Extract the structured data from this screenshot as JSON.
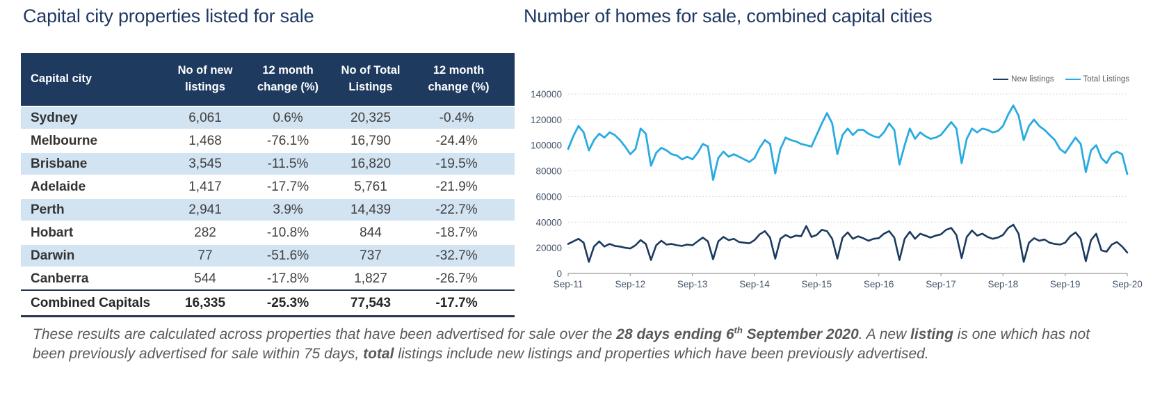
{
  "left_panel": {
    "title": "Capital city properties listed for sale",
    "table": {
      "columns": [
        "Capital city",
        "No of new listings",
        "12 month change (%)",
        "No of Total Listings",
        "12 month change (%)"
      ],
      "rows": [
        [
          "Sydney",
          "6,061",
          "0.6%",
          "20,325",
          "-0.4%"
        ],
        [
          "Melbourne",
          "1,468",
          "-76.1%",
          "16,790",
          "-24.4%"
        ],
        [
          "Brisbane",
          "3,545",
          "-11.5%",
          "16,820",
          "-19.5%"
        ],
        [
          "Adelaide",
          "1,417",
          "-17.7%",
          "5,761",
          "-21.9%"
        ],
        [
          "Perth",
          "2,941",
          "3.9%",
          "14,439",
          "-22.7%"
        ],
        [
          "Hobart",
          "282",
          "-10.8%",
          "844",
          "-18.7%"
        ],
        [
          "Darwin",
          "77",
          "-51.6%",
          "737",
          "-32.7%"
        ],
        [
          "Canberra",
          "544",
          "-17.8%",
          "1,827",
          "-26.7%"
        ]
      ],
      "total_row": [
        "Combined Capitals",
        "16,335",
        "-25.3%",
        "77,543",
        "-17.7%"
      ]
    }
  },
  "right_panel": {
    "title": "Number of homes for sale, combined capital cities",
    "legend": [
      {
        "label": "New listings",
        "color": "#1b3a5f"
      },
      {
        "label": "Total Listings",
        "color": "#29abe2"
      }
    ]
  },
  "chart_data": {
    "type": "line",
    "title": "Number of homes for sale, combined capital cities",
    "xlabel": "",
    "ylabel": "",
    "ylim": [
      0,
      140000
    ],
    "y_ticks": [
      0,
      20000,
      40000,
      60000,
      80000,
      100000,
      120000,
      140000
    ],
    "x_tick_labels": [
      "Sep-11",
      "Sep-12",
      "Sep-13",
      "Sep-14",
      "Sep-15",
      "Sep-16",
      "Sep-17",
      "Sep-18",
      "Sep-19",
      "Sep-20"
    ],
    "x_frequency": "monthly, Sep-2011 to Sep-2020",
    "grid": "horizontal dotted",
    "legend_position": "top-right",
    "series": [
      {
        "name": "New listings",
        "color": "#1b3a5f",
        "values": [
          23000,
          25000,
          27000,
          24000,
          9000,
          21000,
          25000,
          21000,
          23000,
          21500,
          21000,
          20000,
          19500,
          22000,
          26000,
          23000,
          10500,
          22000,
          25500,
          22500,
          23000,
          22000,
          21500,
          22500,
          22000,
          25000,
          28000,
          25000,
          11000,
          25000,
          28500,
          26000,
          27000,
          24500,
          24000,
          23500,
          26000,
          30500,
          33000,
          28000,
          11500,
          27000,
          30000,
          28000,
          29500,
          29000,
          37000,
          28500,
          30000,
          34000,
          33000,
          27000,
          11500,
          28000,
          32000,
          27000,
          29000,
          27500,
          25500,
          27000,
          27500,
          31000,
          33000,
          28000,
          10500,
          27000,
          32500,
          27000,
          31000,
          29500,
          28000,
          29500,
          30500,
          34000,
          35500,
          30000,
          12000,
          28500,
          33500,
          29500,
          31000,
          28500,
          27000,
          28000,
          30000,
          35500,
          38000,
          31000,
          9000,
          24000,
          27500,
          25500,
          26500,
          24000,
          23000,
          22500,
          24000,
          29000,
          32000,
          27000,
          9500,
          26000,
          31000,
          18000,
          17000,
          22500,
          24500,
          21000,
          16300
        ]
      },
      {
        "name": "Total Listings",
        "color": "#29abe2",
        "values": [
          97000,
          107000,
          115000,
          110000,
          96000,
          104000,
          109000,
          106000,
          110000,
          108000,
          104000,
          99000,
          93000,
          97000,
          113000,
          109000,
          84000,
          94000,
          98000,
          96000,
          93000,
          92000,
          89000,
          91000,
          89000,
          94000,
          101000,
          99000,
          73000,
          90000,
          95000,
          91000,
          93000,
          91000,
          89000,
          87000,
          90000,
          98000,
          104000,
          101000,
          78000,
          97000,
          106000,
          104000,
          103000,
          101000,
          100000,
          99000,
          108000,
          117000,
          125000,
          117000,
          93000,
          108000,
          113000,
          108000,
          112000,
          112000,
          109000,
          107000,
          106000,
          110000,
          117000,
          112000,
          85000,
          100000,
          113000,
          105000,
          110000,
          107000,
          105000,
          106000,
          108000,
          113000,
          118000,
          113000,
          86000,
          105000,
          113000,
          110000,
          113000,
          112000,
          110000,
          111000,
          115000,
          124000,
          131000,
          123000,
          104000,
          115000,
          120000,
          115000,
          112000,
          108000,
          104000,
          97000,
          94000,
          100000,
          106000,
          101000,
          79000,
          96000,
          100000,
          90000,
          86000,
          93000,
          95000,
          93000,
          77500
        ]
      }
    ]
  },
  "footnote": {
    "segments": [
      {
        "text": "These results are calculated across properties that have been advertised for sale over the "
      },
      {
        "text": "28 days ending 6",
        "bold": true
      },
      {
        "text": "th",
        "bold": true,
        "sup": true
      },
      {
        "text": " September 2020",
        "bold": true
      },
      {
        "text": ".  A new "
      },
      {
        "text": "listing",
        "bold": true
      },
      {
        "text": " is one which has not been previously advertised for sale within 75 days, "
      },
      {
        "text": "total",
        "bold": true
      },
      {
        "text": " listings include new listings and properties which have been previously advertised."
      }
    ]
  }
}
